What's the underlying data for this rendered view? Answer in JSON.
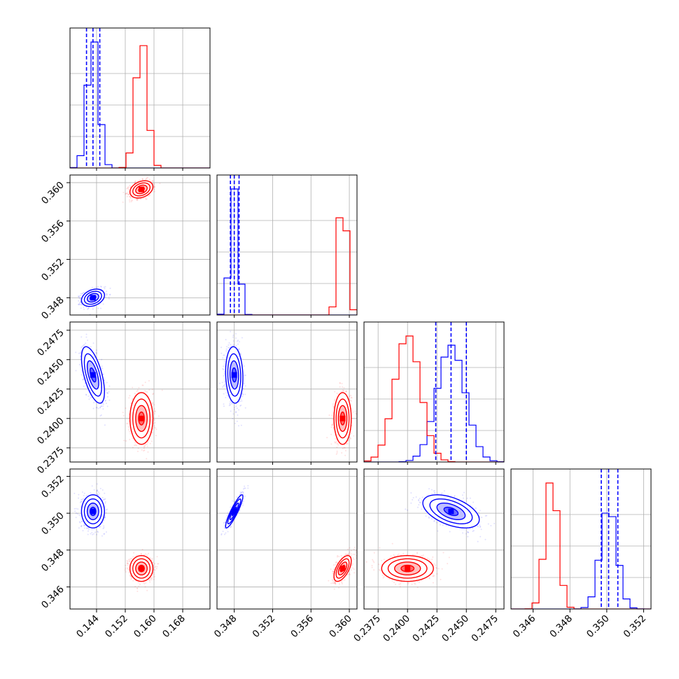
{
  "chart_data": {
    "type": "corner",
    "description_free": true,
    "parameters": [
      {
        "range": [
          0.1366,
          0.1756
        ],
        "ticks": [
          0.144,
          0.152,
          0.16,
          0.168
        ],
        "tick_labels": [
          "0.144",
          "0.152",
          "0.160",
          "0.168"
        ]
      },
      {
        "range": [
          0.3462,
          0.3608
        ],
        "ticks": [
          0.348,
          0.352,
          0.356,
          0.36
        ],
        "tick_labels": [
          "0.348",
          "0.352",
          "0.356",
          "0.360"
        ]
      },
      {
        "range": [
          0.2363,
          0.2482
        ],
        "ticks": [
          0.2375,
          0.24,
          0.2425,
          0.245,
          0.2475
        ],
        "tick_labels": [
          "0.2375",
          "0.2400",
          "0.2425",
          "0.2450",
          "0.2475"
        ]
      },
      {
        "range": [
          0.3448,
          0.3524
        ],
        "ticks": [
          0.346,
          0.348,
          0.35,
          0.352
        ],
        "tick_labels": [
          "0.346",
          "0.348",
          "0.350",
          "0.352"
        ]
      }
    ],
    "series": [
      {
        "color": "#0000ff",
        "means": [
          0.143,
          0.348,
          0.2437,
          0.3501
        ],
        "sigmas": [
          0.0016,
          0.00045,
          0.0012,
          0.00045
        ],
        "correlations": [
          [
            0,
            1,
            0.3
          ],
          [
            0,
            2,
            -0.6
          ],
          [
            0,
            3,
            0.0
          ],
          [
            1,
            2,
            -0.1
          ],
          [
            1,
            3,
            0.9
          ],
          [
            2,
            3,
            -0.5
          ]
        ],
        "quantiles": [
          [
            0.1412,
            0.143,
            0.1449
          ],
          [
            0.3476,
            0.348,
            0.3485
          ],
          [
            0.2424,
            0.2437,
            0.245
          ],
          [
            0.3497,
            0.3501,
            0.3506
          ]
        ]
      },
      {
        "color": "#ff0000",
        "means": [
          0.1565,
          0.3593,
          0.24,
          0.347
        ],
        "sigmas": [
          0.0016,
          0.00045,
          0.0011,
          0.00035
        ],
        "correlations": [
          [
            0,
            1,
            0.3
          ],
          [
            0,
            2,
            0.0
          ],
          [
            0,
            3,
            0.0
          ],
          [
            1,
            2,
            0.0
          ],
          [
            1,
            3,
            0.6
          ],
          [
            2,
            3,
            0.0
          ]
        ]
      }
    ],
    "grid": true,
    "histogram_y_ticks_unlabeled": true
  }
}
